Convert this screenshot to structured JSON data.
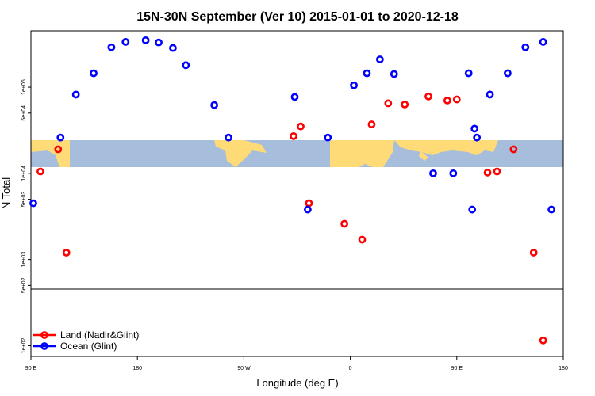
{
  "chart_data": {
    "type": "scatter",
    "title": "15N-30N September (Ver 10)   2015-01-01 to 2020-12-18",
    "xlabel": "Longitude (deg E)",
    "ylabel": "N Total",
    "x_tick_labels": [
      "90 E",
      "180",
      "90 W",
      "0",
      "90 E",
      "180"
    ],
    "x_ticks_unwrapped": [
      90,
      180,
      270,
      360,
      450,
      540
    ],
    "xlim_unwrapped": [
      90,
      540
    ],
    "y_scale": "log",
    "y_ticks": [
      {
        "value": 100,
        "label": "1e+02"
      },
      {
        "value": 500,
        "label": "5e+02"
      },
      {
        "value": 1000,
        "label": "1e+03"
      },
      {
        "value": 5000,
        "label": "5e+03"
      },
      {
        "value": 10000,
        "label": "1e+04"
      },
      {
        "value": 50000,
        "label": "5e+04"
      },
      {
        "value": 100000,
        "label": "1e+05"
      }
    ],
    "ylim": [
      75,
      450000
    ],
    "map_band": {
      "lat_range": "15N-30N",
      "land_color": "#FFDB77",
      "ocean_color": "#A6BDDB"
    },
    "legend_position": "bottom-left",
    "series": [
      {
        "name": "Land (Nadir&Glint)",
        "color": "#FF0000",
        "x": [
          98,
          113,
          120,
          312,
          318,
          325,
          355,
          370,
          378,
          392,
          406,
          426,
          442,
          450,
          476,
          484,
          498,
          515,
          523
        ],
        "y": [
          10500,
          19000,
          1200,
          27000,
          35000,
          4500,
          2600,
          1700,
          37000,
          65000,
          63000,
          78000,
          70000,
          72000,
          10200,
          10500,
          19000,
          1200,
          115
        ]
      },
      {
        "name": "Ocean (Glint)",
        "color": "#0000FF",
        "x": [
          92,
          115,
          128,
          143,
          158,
          170,
          187,
          198,
          210,
          221,
          245,
          257,
          313,
          324,
          341,
          363,
          374,
          385,
          397,
          430,
          447,
          460,
          463,
          465,
          467,
          478,
          493,
          508,
          523,
          530
        ],
        "y": [
          4500,
          26000,
          82000,
          145000,
          290000,
          335000,
          350000,
          330000,
          285000,
          180000,
          62000,
          26000,
          77000,
          3800,
          26000,
          105000,
          145000,
          210000,
          142000,
          10000,
          10000,
          145000,
          3800,
          33000,
          26000,
          82000,
          145000,
          290000,
          335000,
          3800
        ]
      }
    ]
  }
}
